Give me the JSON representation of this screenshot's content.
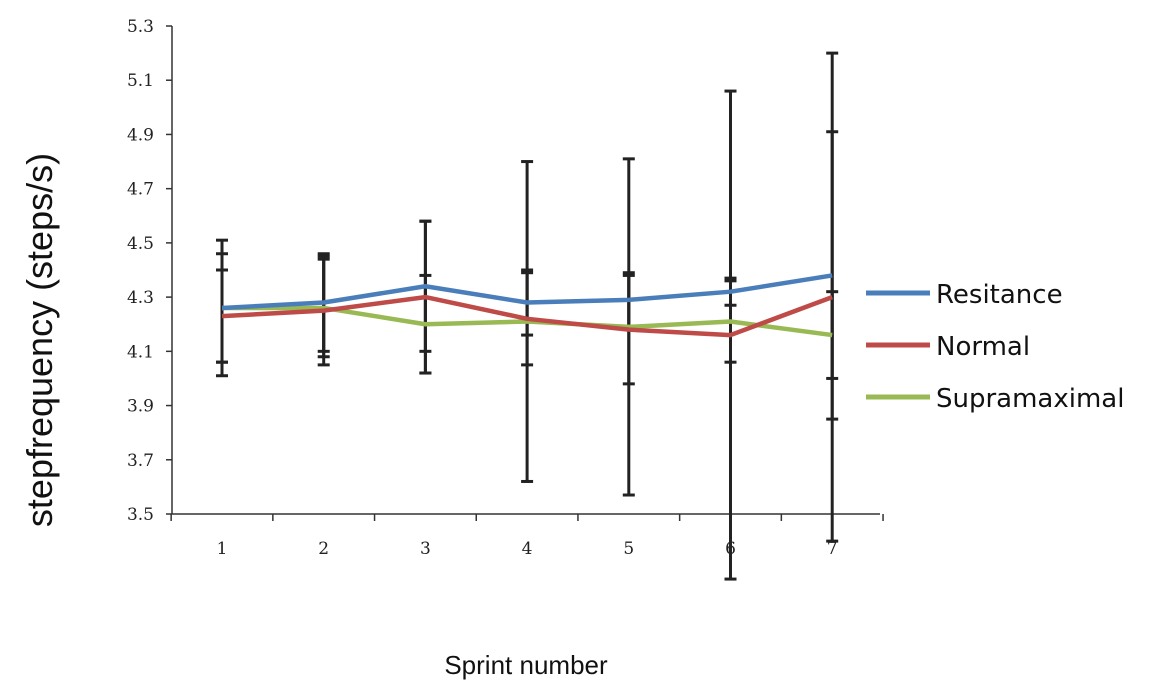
{
  "chart_data": {
    "type": "line",
    "title": "",
    "xlabel": "Sprint number",
    "ylabel": "stepfrequency (steps/s)",
    "categories": [
      "1",
      "2",
      "3",
      "4",
      "5",
      "6",
      "7"
    ],
    "ylim": [
      3.5,
      5.3
    ],
    "yticks": [
      "3.5",
      "3.7",
      "3.9",
      "4.1",
      "4.3",
      "4.5",
      "4.7",
      "4.9",
      "5.1",
      "5.3"
    ],
    "grid": false,
    "legend_position": "right",
    "series": [
      {
        "name": "Resitance",
        "color": "#4a7ebb",
        "values": [
          4.26,
          4.28,
          4.34,
          4.28,
          4.29,
          4.32,
          4.38
        ],
        "error": [
          0.25,
          0.18,
          0.24,
          0.12,
          0.1,
          0.05,
          0.53
        ]
      },
      {
        "name": "Normal",
        "color": "#be4b48",
        "values": [
          4.23,
          4.25,
          4.3,
          4.22,
          4.18,
          4.16,
          4.3
        ],
        "error": [
          0.17,
          0.2,
          0.28,
          0.17,
          0.2,
          0.9,
          0.9
        ]
      },
      {
        "name": "Supramaximal",
        "color": "#98b954",
        "values": [
          4.26,
          4.26,
          4.2,
          4.21,
          4.19,
          4.21,
          4.16
        ],
        "error": [
          0.2,
          0.18,
          0.18,
          0.59,
          0.62,
          0.15,
          0.16
        ]
      }
    ]
  }
}
